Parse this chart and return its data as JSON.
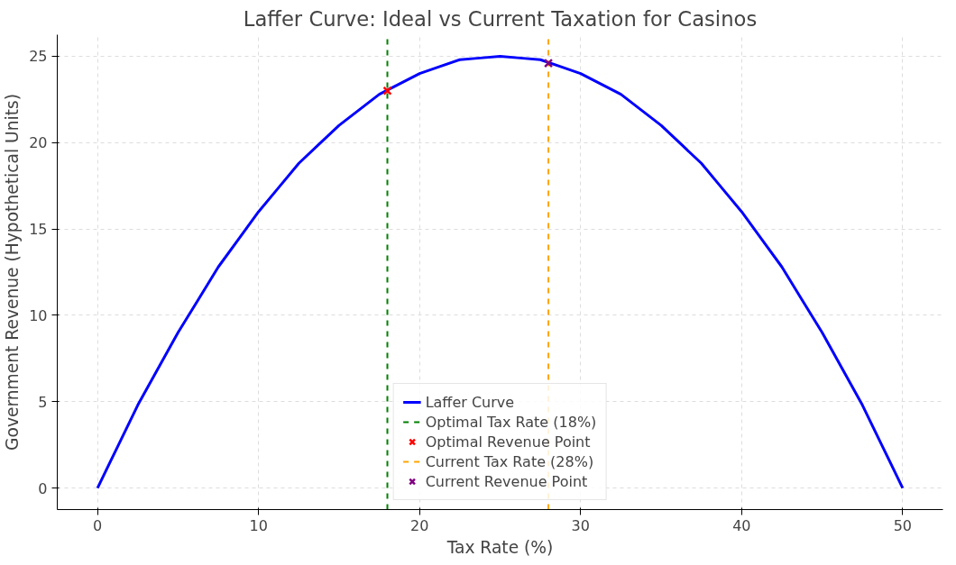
{
  "chart_data": {
    "type": "line",
    "title": "Laffer Curve: Ideal vs Current Taxation for Casinos",
    "xlabel": "Tax Rate (%)",
    "ylabel": "Government Revenue (Hypothetical Units)",
    "xlim": [
      -2.5,
      52.5
    ],
    "ylim": [
      -1.25,
      26.25
    ],
    "xticks": [
      0,
      10,
      20,
      30,
      40,
      50
    ],
    "yticks": [
      0,
      5,
      10,
      15,
      20,
      25
    ],
    "grid": true,
    "legend": "bottom",
    "series": [
      {
        "name": "Laffer Curve",
        "color": "#0000ff",
        "line_style": "solid",
        "x": [
          0,
          1.25,
          2.5,
          3.75,
          5,
          6.25,
          7.5,
          8.75,
          10,
          11.25,
          12.5,
          13.75,
          15,
          16.25,
          17.5,
          18.75,
          20,
          21.25,
          22.5,
          23.75,
          25,
          26.25,
          27.5,
          28.75,
          30,
          31.25,
          32.5,
          33.75,
          35,
          36.25,
          37.5,
          38.75,
          40,
          41.25,
          42.5,
          43.75,
          45,
          46.25,
          47.5,
          48.75,
          50
        ],
        "values": [
          0,
          2.4,
          4.8,
          6.9,
          9,
          10.9,
          12.8,
          14.4,
          16,
          17.4,
          18.8,
          19.9,
          21,
          21.9,
          22.8,
          23.4,
          24,
          24.4,
          24.8,
          24.9,
          25,
          24.9,
          24.8,
          24.4,
          24,
          23.4,
          22.8,
          21.9,
          21,
          19.9,
          18.8,
          17.4,
          16,
          14.4,
          12.8,
          10.9,
          9,
          6.9,
          4.8,
          2.4,
          0
        ]
      },
      {
        "name": "Optimal Revenue Point",
        "type": "scatter",
        "marker": "cross",
        "color": "#ff0000",
        "x": [
          18
        ],
        "values": [
          23.0
        ]
      },
      {
        "name": "Current Revenue Point",
        "type": "scatter",
        "marker": "cross",
        "color": "#800080",
        "x": [
          28
        ],
        "values": [
          24.6
        ]
      }
    ],
    "ref_lines": [
      {
        "axis": "x",
        "value": 18,
        "label": "Optimal Tax Rate (18%)",
        "color": "#008000",
        "line_style": "dashed"
      },
      {
        "axis": "x",
        "value": 28,
        "label": "Current Tax Rate (28%)",
        "color": "#ffa500",
        "line_style": "dashed"
      }
    ]
  }
}
